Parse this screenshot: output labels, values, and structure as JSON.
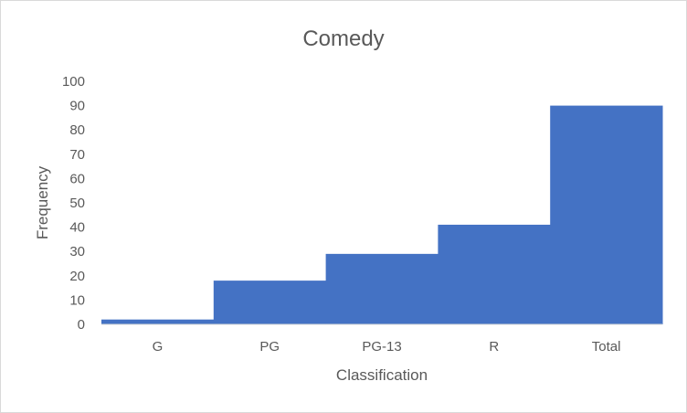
{
  "chart_data": {
    "type": "bar",
    "title": "Comedy",
    "xlabel": "Classification",
    "ylabel": "Frequency",
    "categories": [
      "G",
      "PG",
      "PG-13",
      "R",
      "Total"
    ],
    "values": [
      2,
      18,
      29,
      41,
      90
    ],
    "ylim": [
      0,
      100
    ],
    "yticks": [
      0,
      10,
      20,
      30,
      40,
      50,
      60,
      70,
      80,
      90,
      100
    ],
    "grid": false,
    "legend": "none",
    "bar_color": "#4472c4"
  }
}
